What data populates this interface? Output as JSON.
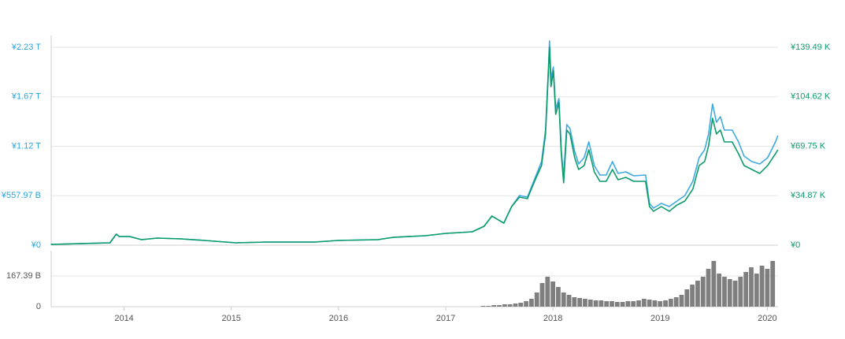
{
  "chart_data": [
    {
      "type": "line",
      "xlim": [
        2013.32,
        2020.1
      ],
      "x": [
        2013.317,
        2013.868,
        2013.927,
        2013.956,
        2014.051,
        2014.162,
        2014.309,
        2014.529,
        2014.749,
        2015.043,
        2015.337,
        2015.778,
        2015.999,
        2016.366,
        2016.513,
        2016.807,
        2017.005,
        2017.248,
        2017.358,
        2017.431,
        2017.542,
        2017.615,
        2017.688,
        2017.762,
        2017.835,
        2017.894,
        2017.931,
        2017.96,
        2017.968,
        2017.982,
        2018.004,
        2018.026,
        2018.056,
        2018.078,
        2018.1,
        2018.129,
        2018.159,
        2018.203,
        2018.24,
        2018.291,
        2018.335,
        2018.386,
        2018.438,
        2018.497,
        2018.555,
        2018.607,
        2018.68,
        2018.754,
        2018.864,
        2018.901,
        2018.938,
        2019.011,
        2019.085,
        2019.158,
        2019.231,
        2019.305,
        2019.364,
        2019.415,
        2019.452,
        2019.489,
        2019.525,
        2019.562,
        2019.599,
        2019.672,
        2019.731,
        2019.783,
        2019.856,
        2019.929,
        2020.003,
        2020.076,
        2020.098
      ],
      "ylim": [
        0,
        2365000000000.0
      ],
      "yticks": [
        {
          "value": 0,
          "label": "¥0"
        },
        {
          "value": 557970000000.0,
          "label": "¥557.97 B"
        },
        {
          "value": 1115940000000.0,
          "label": "¥1.12 T"
        },
        {
          "value": 1673910000000.0,
          "label": "¥1.67 T"
        },
        {
          "value": 2231880000000.0,
          "label": "¥2.23 T"
        }
      ],
      "y2lim": [
        0,
        147800
      ],
      "y2ticks": [
        {
          "value": 0,
          "label": "¥0"
        },
        {
          "value": 34872,
          "label": "¥34.87 K"
        },
        {
          "value": 69745,
          "label": "¥69.75 K"
        },
        {
          "value": 104617,
          "label": "¥104.62 K"
        },
        {
          "value": 139490,
          "label": "¥139.49 K"
        }
      ],
      "grid": true,
      "series": [
        {
          "color": "#3ea9e2",
          "values": [
            8900000000.0,
            26700000000.0,
            124500000000.0,
            97800000000.0,
            97800000000.0,
            62200000000.0,
            80000000000.0,
            71100000000.0,
            53400000000.0,
            26700000000.0,
            35600000000.0,
            35600000000.0,
            53400000000.0,
            62200000000.0,
            88900000000.0,
            106700000000.0,
            133400000000.0,
            151200000000.0,
            213400000000.0,
            329000000000.0,
            249000000000.0,
            435700000000.0,
            560200000000.0,
            542400000000.0,
            764700000000.0,
            942600000000.0,
            1298200000000.0,
            2054100000000.0,
            2303000000000.0,
            1876200000000.0,
            2009600000000.0,
            1538300000000.0,
            1653900000000.0,
            1075900000000.0,
            764700000000.0,
            1360500000000.0,
            1316000000000.0,
            1058100000000.0,
            915900000000.0,
            987000000000.0,
            1164900000000.0,
            898100000000.0,
            791400000000.0,
            791400000000.0,
            942600000000.0,
            809200000000.0,
            827000000000.0,
            782500000000.0,
            791400000000.0,
            471300000000.0,
            417900000000.0,
            471300000000.0,
            435700000000.0,
            497900000000.0,
            560200000000.0,
            720300000000.0,
            987000000000.0,
            1075900000000.0,
            1253800000000.0,
            1591700000000.0,
            1387200000000.0,
            1449400000000.0,
            1298200000000.0,
            1298200000000.0,
            1164900000000.0,
            1004800000000.0,
            942600000000.0,
            915900000000.0,
            987000000000.0,
            1164900000000.0,
            1236000000000.0
          ]
        },
        {
          "color": "#0c9c6b",
          "axis": "y2",
          "values": [
            556,
            1667,
            7780,
            6113,
            6113,
            3890,
            5001,
            4446,
            3334,
            1667,
            2223,
            2223,
            3334,
            3890,
            5557,
            6668,
            8336,
            9447,
            13337,
            20561,
            15560,
            27229,
            33898,
            32786,
            46123,
            56126,
            78354,
            125588,
            139481,
            111696,
            122810,
            92246,
            100582,
            64461,
            43900,
            81132,
            78354,
            61683,
            53347,
            56126,
            67240,
            51680,
            45012,
            45012,
            53347,
            46123,
            47790,
            45012,
            45012,
            27229,
            23895,
            27229,
            23895,
            28341,
            31119,
            39455,
            56126,
            58904,
            70018,
            89468,
            78354,
            81132,
            72797,
            72797,
            64461,
            56126,
            53347,
            50569,
            56126,
            64461,
            67240
          ]
        }
      ]
    },
    {
      "type": "bar",
      "xlim": [
        2013.32,
        2020.1
      ],
      "xticks": [
        2014,
        2015,
        2016,
        2017,
        2018,
        2019,
        2020
      ],
      "ylim": [
        0,
        304700000000.0
      ],
      "yticks": [
        0,
        {
          "value": 167390000000.0,
          "label": "167.39 B"
        }
      ],
      "grid": true,
      "color": "#7f7f7f",
      "x": [
        2017.35,
        2017.4,
        2017.45,
        2017.5,
        2017.55,
        2017.6,
        2017.65,
        2017.7,
        2017.75,
        2017.8,
        2017.85,
        2017.9,
        2017.95,
        2018.0,
        2018.05,
        2018.1,
        2018.15,
        2018.2,
        2018.25,
        2018.3,
        2018.35,
        2018.4,
        2018.45,
        2018.5,
        2018.55,
        2018.6,
        2018.65,
        2018.7,
        2018.75,
        2018.8,
        2018.85,
        2018.9,
        2018.95,
        2019.0,
        2019.05,
        2019.1,
        2019.15,
        2019.2,
        2019.25,
        2019.3,
        2019.35,
        2019.4,
        2019.45,
        2019.5,
        2019.55,
        2019.6,
        2019.65,
        2019.7,
        2019.75,
        2019.8,
        2019.85,
        2019.9,
        2019.95,
        2020.0,
        2020.05
      ],
      "values": [
        4300000000.0,
        4300000000.0,
        8600000000.0,
        8600000000.0,
        12900000000.0,
        12900000000.0,
        17200000000.0,
        21500000000.0,
        30000000000.0,
        42900000000.0,
        77300000000.0,
        128800000000.0,
        163100000000.0,
        137300000000.0,
        107300000000.0,
        77300000000.0,
        64400000000.0,
        51500000000.0,
        47200000000.0,
        42900000000.0,
        38600000000.0,
        34300000000.0,
        34300000000.0,
        30000000000.0,
        30000000000.0,
        25800000000.0,
        25800000000.0,
        30000000000.0,
        30000000000.0,
        34300000000.0,
        42900000000.0,
        38600000000.0,
        34300000000.0,
        30000000000.0,
        34300000000.0,
        42900000000.0,
        51500000000.0,
        64400000000.0,
        94400000000.0,
        120200000000.0,
        141600000000.0,
        163100000000.0,
        206000000000.0,
        248900000000.0,
        180300000000.0,
        163100000000.0,
        150200000000.0,
        141600000000.0,
        163100000000.0,
        188800000000.0,
        214600000000.0,
        180300000000.0,
        223200000000.0,
        206000000000.0,
        248900000000.0
      ]
    }
  ]
}
